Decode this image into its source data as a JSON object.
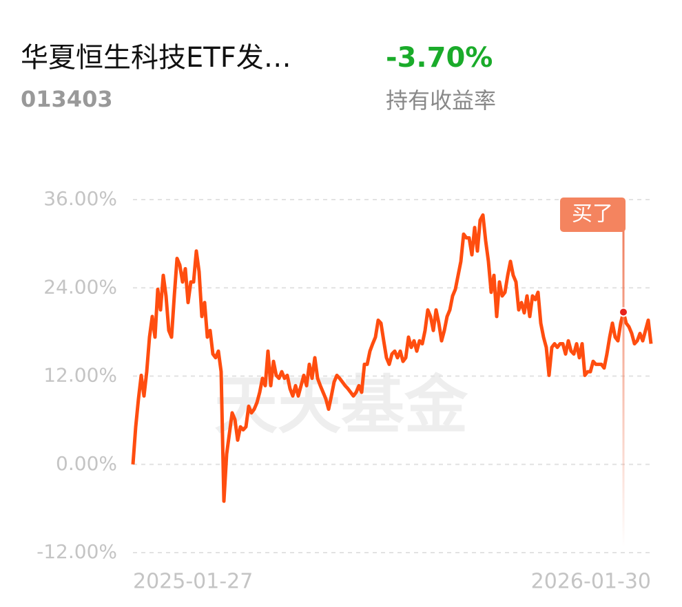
{
  "header": {
    "title": "华夏恒生科技ETF发…",
    "code": "013403",
    "return": "-3.70%",
    "return_label": "持有收益率"
  },
  "chart_data": {
    "type": "line",
    "watermark": "天天基金",
    "categories": [
      "2025-01-27",
      null,
      null,
      null,
      null,
      null,
      null,
      null,
      null,
      null,
      null,
      null,
      null,
      null,
      null,
      null,
      null,
      null,
      null,
      null,
      null,
      null,
      null,
      null,
      null,
      null,
      null,
      null,
      null,
      null,
      null,
      null,
      null,
      null,
      null,
      null,
      null,
      null,
      null,
      null,
      null,
      null,
      null,
      null,
      null,
      null,
      null,
      null,
      null,
      null,
      null,
      null,
      null,
      null,
      null,
      null,
      null,
      null,
      null,
      null,
      null,
      null,
      null,
      null,
      null,
      null,
      null,
      null,
      null,
      null,
      null,
      null,
      null,
      null,
      null,
      null,
      null,
      null,
      null,
      null,
      null,
      null,
      null,
      null,
      null,
      null,
      null,
      null,
      null,
      null,
      null,
      null,
      null,
      null,
      null,
      null,
      null,
      null,
      null,
      null,
      null,
      null,
      null,
      null,
      null,
      null,
      null,
      null,
      null,
      null,
      null,
      null,
      null,
      null,
      null,
      null,
      null,
      null,
      null,
      null,
      null,
      null,
      null,
      null,
      null,
      null,
      null,
      null,
      null,
      null,
      null,
      null,
      null,
      null,
      null,
      null,
      null,
      null,
      null,
      null,
      null,
      null,
      null,
      null,
      null,
      null,
      null,
      null,
      null,
      null,
      null,
      null,
      null,
      null,
      null,
      null,
      null,
      null,
      null,
      null,
      null,
      null,
      null,
      null,
      null,
      null,
      null,
      null,
      null,
      null,
      null,
      null,
      null,
      null,
      null,
      null,
      null,
      null,
      null,
      null,
      null,
      null,
      null,
      null,
      null,
      null,
      null,
      null,
      "2026-01-30"
    ],
    "series": [
      {
        "name": "持有收益率",
        "color": "#ff4d0f",
        "values": [
          0,
          5.1,
          8.9,
          12.1,
          9.3,
          12.6,
          17.3,
          20.1,
          17.3,
          23.8,
          21.0,
          25.7,
          22.9,
          18.2,
          17.3,
          22.9,
          28.0,
          27.1,
          24.8,
          26.6,
          22.0,
          24.8,
          24.8,
          29.0,
          26.2,
          20.1,
          22.0,
          17.3,
          18.2,
          15.0,
          14.5,
          15.4,
          12.6,
          -5.0,
          1.4,
          4.2,
          7.0,
          6.1,
          3.3,
          5.1,
          4.7,
          5.1,
          7.9,
          7.0,
          7.5,
          8.4,
          9.8,
          11.7,
          10.7,
          15.4,
          10.7,
          14.0,
          12.1,
          11.7,
          12.6,
          11.7,
          12.1,
          10.3,
          9.3,
          10.7,
          9.3,
          10.7,
          12.1,
          10.7,
          13.6,
          11.7,
          14.5,
          11.7,
          10.7,
          9.8,
          8.9,
          7.5,
          9.3,
          11.2,
          12.1,
          11.7,
          11.2,
          10.7,
          10.3,
          9.8,
          9.3,
          9.8,
          10.7,
          9.8,
          13.6,
          13.6,
          15.4,
          16.4,
          17.3,
          19.6,
          19.2,
          16.8,
          14.5,
          13.6,
          15.0,
          15.4,
          14.5,
          15.4,
          14.0,
          14.5,
          17.3,
          15.9,
          16.8,
          15.4,
          16.8,
          16.4,
          18.2,
          21.0,
          20.1,
          18.2,
          21.0,
          19.2,
          16.8,
          18.2,
          20.1,
          21.0,
          22.9,
          23.8,
          25.7,
          27.6,
          31.3,
          30.8,
          30.8,
          28.5,
          32.2,
          29.0,
          33.2,
          33.9,
          30.4,
          27.6,
          23.4,
          25.7,
          20.1,
          24.8,
          22.9,
          23.4,
          25.7,
          27.6,
          25.7,
          24.8,
          21.0,
          22.0,
          20.6,
          22.9,
          20.1,
          22.9,
          22.4,
          23.4,
          19.2,
          17.3,
          15.9,
          12.1,
          15.9,
          16.4,
          15.9,
          16.4,
          16.4,
          15.0,
          16.8,
          15.4,
          15.0,
          16.4,
          14.5,
          16.4,
          12.1,
          12.6,
          12.6,
          14.0,
          13.6,
          13.6,
          13.6,
          13.1,
          15.0,
          17.3,
          19.2,
          17.3,
          16.8,
          19.2,
          20.7,
          19.2,
          18.7,
          17.8,
          16.4,
          16.8,
          17.8,
          16.8,
          18.2,
          19.6,
          16.4
        ]
      }
    ],
    "ylim": [
      -12,
      36
    ],
    "yticks": [
      {
        "value": -12,
        "label": "-12.00%"
      },
      {
        "value": 0,
        "label": "0.00%"
      },
      {
        "value": 12,
        "label": "12.00%"
      },
      {
        "value": 24,
        "label": "24.00%"
      },
      {
        "value": 36,
        "label": "36.00%"
      }
    ],
    "grid": true,
    "annotation": {
      "label": "买了",
      "index": 178
    }
  }
}
